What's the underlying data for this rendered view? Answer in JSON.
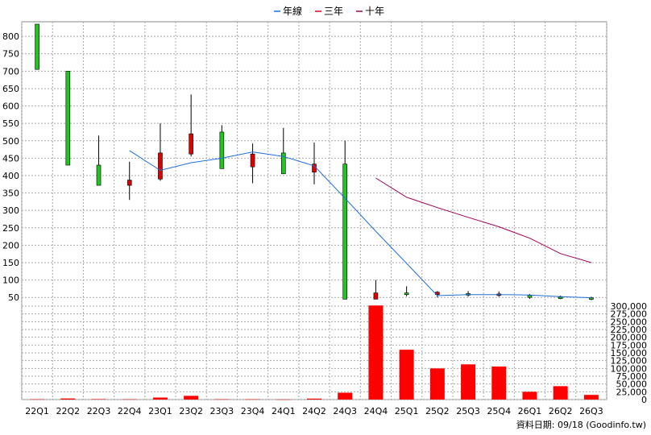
{
  "legend": [
    {
      "name": "年線",
      "color": "#1f6fd6"
    },
    {
      "name": "三年",
      "color": "#e0001b"
    },
    {
      "name": "十年",
      "color": "#a0005a"
    }
  ],
  "credit": "資料日期: 09/18  (Goodinfo.tw)",
  "chart_data": {
    "type": "candlestick+line+bar",
    "categories": [
      "22Q1",
      "22Q2",
      "22Q3",
      "22Q4",
      "23Q1",
      "23Q2",
      "23Q3",
      "23Q4",
      "24Q1",
      "24Q2",
      "24Q3",
      "24Q4",
      "25Q1",
      "25Q2",
      "25Q3",
      "25Q4",
      "26Q1",
      "26Q2",
      "26Q3"
    ],
    "price_axis": {
      "min": 25,
      "max": 835,
      "ticks": [
        50,
        100,
        150,
        200,
        250,
        300,
        350,
        400,
        450,
        500,
        550,
        600,
        650,
        700,
        750,
        800
      ]
    },
    "volume_axis": {
      "min": 0,
      "max": 300000,
      "ticks": [
        0,
        25000,
        50000,
        75000,
        100000,
        125000,
        150000,
        175000,
        200000,
        225000,
        250000,
        275000,
        300000
      ],
      "tick_labels": [
        "0",
        "25,000",
        "50,000",
        "75,000",
        "100,000",
        "125,000",
        "150,000",
        "175,000",
        "200,000",
        "225,000",
        "250,000",
        "275,000",
        "300,000"
      ]
    },
    "candles": [
      {
        "open": 705,
        "high": 835,
        "low": 705,
        "close": 835
      },
      {
        "open": 430,
        "high": 700,
        "low": 430,
        "close": 700
      },
      {
        "open": 372,
        "high": 515,
        "low": 372,
        "close": 430
      },
      {
        "open": 387,
        "high": 440,
        "low": 330,
        "close": 372
      },
      {
        "open": 465,
        "high": 550,
        "low": 385,
        "close": 390
      },
      {
        "open": 520,
        "high": 633,
        "low": 455,
        "close": 462
      },
      {
        "open": 420,
        "high": 545,
        "low": 420,
        "close": 525
      },
      {
        "open": 462,
        "high": 492,
        "low": 378,
        "close": 425
      },
      {
        "open": 405,
        "high": 537,
        "low": 405,
        "close": 465
      },
      {
        "open": 433,
        "high": 495,
        "low": 375,
        "close": 410
      },
      {
        "open": 45,
        "high": 500,
        "low": 45,
        "close": 433
      },
      {
        "open": 63,
        "high": 100,
        "low": 47,
        "close": 45
      },
      {
        "open": 58,
        "high": 82,
        "low": 53,
        "close": 63
      },
      {
        "open": 65,
        "high": 68,
        "low": 50,
        "close": 58
      },
      {
        "open": 60,
        "high": 68,
        "low": 52,
        "close": 61
      },
      {
        "open": 60,
        "high": 67,
        "low": 52,
        "close": 59
      },
      {
        "open": 50,
        "high": 60,
        "low": 46,
        "close": 56
      },
      {
        "open": 50,
        "high": 55,
        "low": 45,
        "close": 51
      },
      {
        "open": 46,
        "high": 52,
        "low": 42,
        "close": 49
      }
    ],
    "series": [
      {
        "name": "年線",
        "color": "#1f6fd6",
        "values": [
          null,
          null,
          null,
          472,
          415,
          437,
          450,
          468,
          455,
          428,
          335,
          240,
          148,
          55,
          58,
          58,
          57,
          52,
          49
        ]
      },
      {
        "name": "三年",
        "color": "#e0001b",
        "values": [
          null,
          null,
          null,
          null,
          null,
          null,
          null,
          null,
          null,
          null,
          null,
          null,
          null,
          null,
          null,
          null,
          null,
          null,
          null
        ]
      },
      {
        "name": "十年",
        "color": "#a0005a",
        "values": [
          null,
          null,
          null,
          null,
          null,
          null,
          null,
          null,
          null,
          null,
          null,
          393,
          338,
          308,
          280,
          253,
          220,
          176,
          150
        ]
      }
    ],
    "volume": [
      1000,
      3500,
      1500,
      1000,
      6500,
      12000,
      1000,
      1000,
      500,
      3000,
      22000,
      302000,
      160000,
      100000,
      113000,
      106000,
      25000,
      43000,
      15000
    ],
    "volume_color": "#ff0000",
    "grid": true
  }
}
